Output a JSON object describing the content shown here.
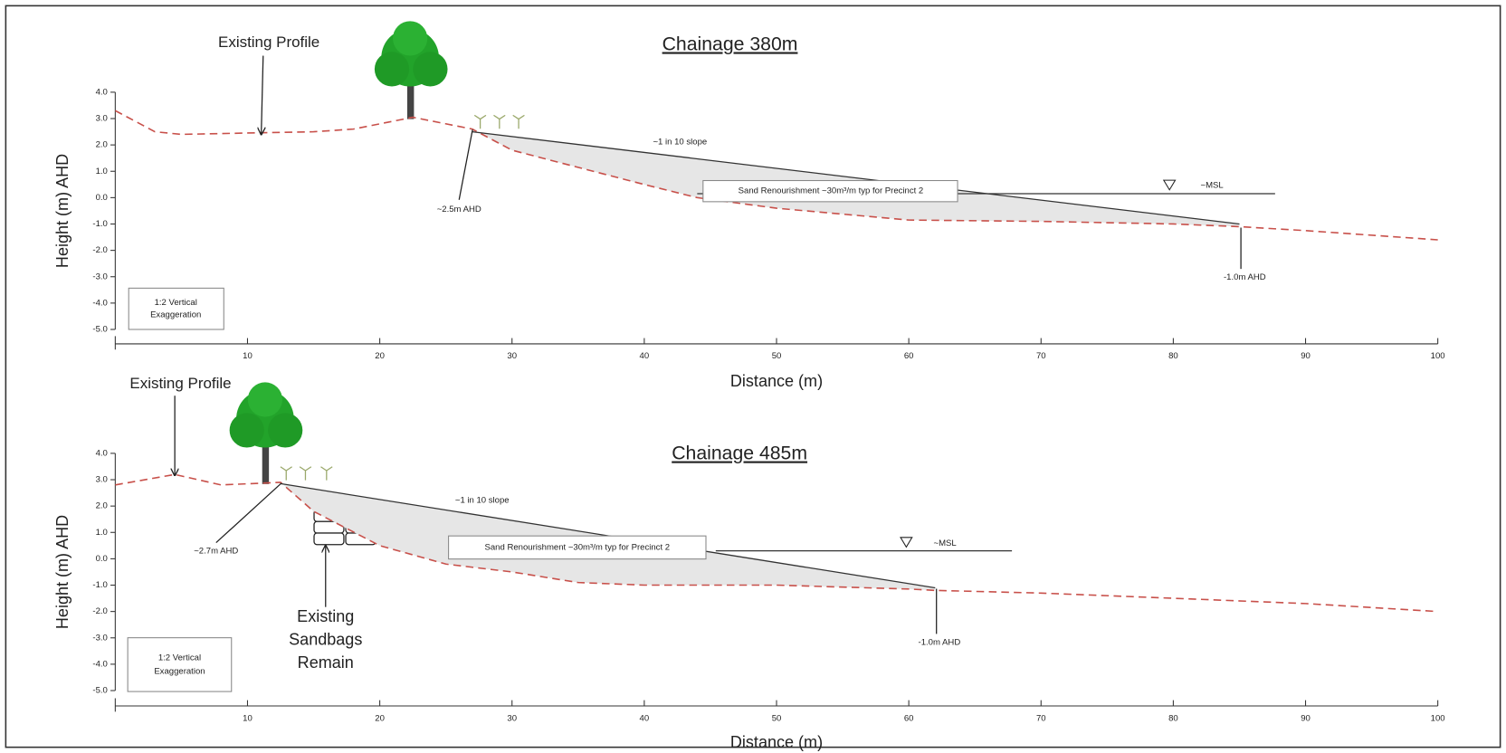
{
  "chart_data": [
    {
      "type": "line",
      "title": "Chainage 380m",
      "x_label": "Distance (m)",
      "y_label": "Height (m) AHD",
      "xlim": [
        0,
        100
      ],
      "xticks": [
        10,
        20,
        30,
        40,
        50,
        60,
        70,
        80,
        90,
        100
      ],
      "ylim": [
        -5,
        4
      ],
      "yticks": [
        {
          "value": 4,
          "label": "4.0"
        },
        {
          "value": 3,
          "label": "3.0"
        },
        {
          "value": 2,
          "label": "2.0"
        },
        {
          "value": 1,
          "label": "1.0"
        },
        {
          "value": 0,
          "label": "0.0"
        },
        {
          "value": -1,
          "label": "-1.0"
        },
        {
          "value": -2,
          "label": "-2.0"
        },
        {
          "value": -3,
          "label": "-3.0"
        },
        {
          "value": -4,
          "label": "-4.0"
        },
        {
          "value": -5,
          "label": "-5.0"
        }
      ],
      "series": [
        {
          "name": "Existing Profile",
          "color": "#c8504a",
          "dashed": true,
          "x": [
            0,
            3,
            5,
            10,
            15,
            18,
            21,
            22.5,
            24,
            27,
            30,
            40,
            44,
            50,
            60,
            70,
            80,
            85,
            90,
            100
          ],
          "values": [
            3.3,
            2.5,
            2.4,
            2.45,
            2.5,
            2.6,
            2.9,
            3.05,
            2.9,
            2.6,
            1.8,
            0.5,
            0.0,
            -0.4,
            -0.85,
            -0.9,
            -1.0,
            -1.1,
            -1.25,
            -1.6
          ]
        },
        {
          "name": "~1 in 10 slope",
          "color": "#333333",
          "dashed": false,
          "x": [
            27,
            85
          ],
          "values": [
            2.5,
            -1.0
          ]
        },
        {
          "name": "~MSL",
          "color": "#333333",
          "dashed": false,
          "x": [
            44,
            87.7
          ],
          "values": [
            0.15,
            0.15
          ]
        }
      ],
      "annotations": [
        [
          "~2.5m AHD"
        ],
        [
          "Sand Renourishment ~30m³/m typ for Precinct 2"
        ],
        [
          "-1.0m AHD"
        ],
        [
          "1:2 Vertical",
          "Exaggeration"
        ]
      ]
    },
    {
      "type": "line",
      "title": "Chainage 485m",
      "x_label": "Distance (m)",
      "y_label": "Height (m) AHD",
      "xlim": [
        0,
        100
      ],
      "xticks": [
        10,
        20,
        30,
        40,
        50,
        60,
        70,
        80,
        90,
        100
      ],
      "ylim": [
        -5,
        4
      ],
      "yticks": [
        {
          "value": 4,
          "label": "4.0"
        },
        {
          "value": 3,
          "label": "3.0"
        },
        {
          "value": 2,
          "label": "2.0"
        },
        {
          "value": 1,
          "label": "1.0"
        },
        {
          "value": 0,
          "label": "0.0"
        },
        {
          "value": -1,
          "label": "-1.0"
        },
        {
          "value": -2,
          "label": "-2.0"
        },
        {
          "value": -3,
          "label": "-3.0"
        },
        {
          "value": -4,
          "label": "-4.0"
        },
        {
          "value": -5,
          "label": "-5.0"
        }
      ],
      "series": [
        {
          "name": "Existing Profile",
          "color": "#c8504a",
          "dashed": true,
          "x": [
            0,
            4.5,
            8,
            12.5,
            15,
            20,
            25,
            30,
            35,
            40,
            50,
            60,
            62,
            70,
            80,
            90,
            100
          ],
          "values": [
            2.8,
            3.2,
            2.8,
            2.9,
            1.8,
            0.5,
            -0.2,
            -0.5,
            -0.9,
            -1.0,
            -1.0,
            -1.15,
            -1.2,
            -1.3,
            -1.5,
            -1.7,
            -2.0
          ]
        },
        {
          "name": "~1 in 10 slope",
          "color": "#333333",
          "dashed": false,
          "x": [
            12.5,
            62
          ],
          "values": [
            2.85,
            -1.1
          ]
        },
        {
          "name": "~MSL",
          "color": "#333333",
          "dashed": false,
          "x": [
            45.4,
            67.8
          ],
          "values": [
            0.3,
            0.3
          ]
        }
      ],
      "annotations": [
        [
          "~2.7m AHD"
        ],
        [
          "Sand Renourishment ~30m³/m typ for Precinct 2"
        ],
        [
          "-1.0m AHD"
        ],
        [
          "1:2 Vertical",
          "Exaggeration"
        ],
        [
          "Existing",
          "Sandbags",
          "Remain"
        ]
      ]
    }
  ]
}
